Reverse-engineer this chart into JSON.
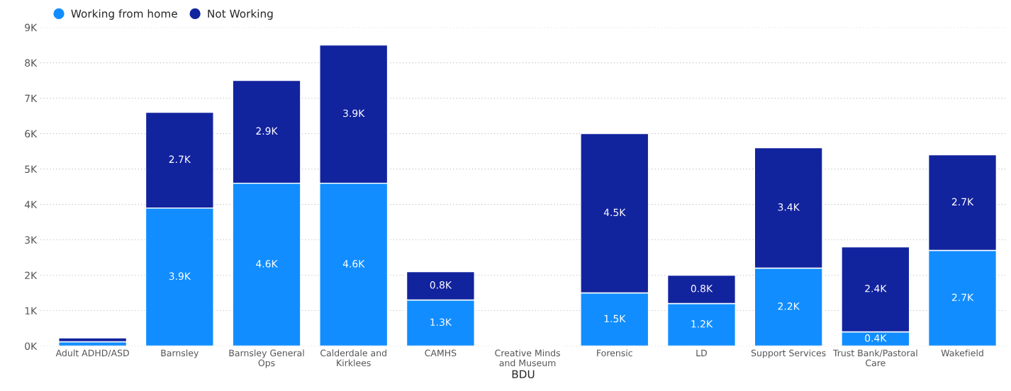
{
  "chart_data": {
    "type": "bar",
    "stacked": true,
    "xlabel": "BDU",
    "categories": [
      "Adult ADHD/ASD",
      "Barnsley",
      "Barnsley General\nOps",
      "Calderdale and\nKirklees",
      "CAMHS",
      "Creative Minds\nand Museum",
      "Forensic",
      "LD",
      "Support Services",
      "Trust Bank/Pastoral\nCare",
      "Wakefield"
    ],
    "series": [
      {
        "name": "Working from home",
        "color": "#118dff",
        "values": [
          0.12,
          3.9,
          4.6,
          4.6,
          1.3,
          null,
          1.5,
          1.2,
          2.2,
          0.4,
          2.7
        ],
        "value_labels": [
          null,
          "3.9K",
          "4.6K",
          "4.6K",
          "1.3K",
          null,
          "1.5K",
          "1.2K",
          "2.2K",
          "0.4K",
          "2.7K"
        ]
      },
      {
        "name": "Not Working",
        "color": "#12239e",
        "values": [
          0.11,
          2.7,
          2.9,
          3.9,
          0.8,
          null,
          4.5,
          0.8,
          3.4,
          2.4,
          2.7
        ],
        "value_labels": [
          null,
          "2.7K",
          "2.9K",
          "3.9K",
          "0.8K",
          null,
          "4.5K",
          "0.8K",
          "3.4K",
          "2.4K",
          "2.7K"
        ]
      }
    ],
    "ylim": [
      0,
      9
    ],
    "yticks": [
      {
        "value": 0,
        "label": "0K"
      },
      {
        "value": 1,
        "label": "1K"
      },
      {
        "value": 2,
        "label": "2K"
      },
      {
        "value": 3,
        "label": "3K"
      },
      {
        "value": 4,
        "label": "4K"
      },
      {
        "value": 5,
        "label": "5K"
      },
      {
        "value": 6,
        "label": "6K"
      },
      {
        "value": 7,
        "label": "7K"
      },
      {
        "value": 8,
        "label": "8K"
      },
      {
        "value": 9,
        "label": "9K"
      }
    ],
    "grid": "y",
    "legend": "top left",
    "marker": "circle"
  }
}
